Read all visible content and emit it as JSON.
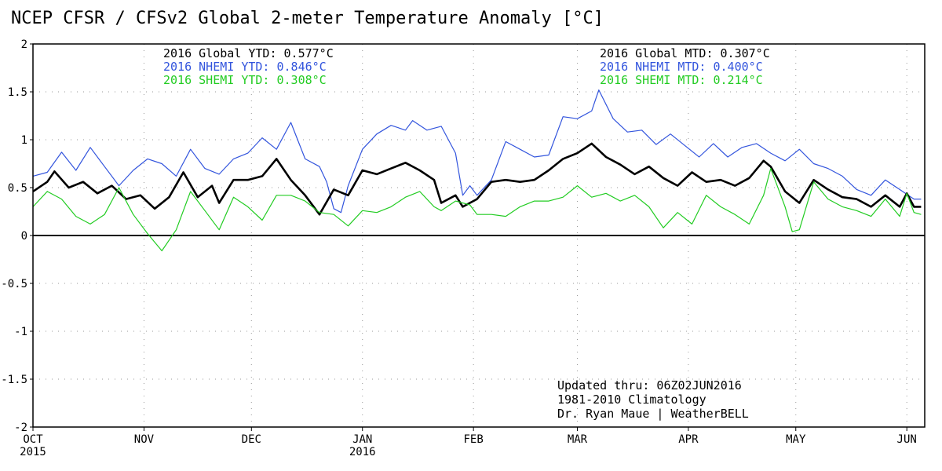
{
  "chart_data": {
    "type": "line",
    "title": "NCEP CFSR / CFSv2 Global 2-meter Temperature Anomaly [°C]",
    "xlabel": "",
    "ylabel": "",
    "ylim": [
      -2,
      2
    ],
    "xlim": [
      0,
      249
    ],
    "yticks": [
      {
        "value": 2,
        "label": "2"
      },
      {
        "value": 1.5,
        "label": "1.5"
      },
      {
        "value": 1,
        "label": "1"
      },
      {
        "value": 0.5,
        "label": "0.5"
      },
      {
        "value": 0,
        "label": "0"
      },
      {
        "value": -0.5,
        "label": "-0.5"
      },
      {
        "value": -1,
        "label": "-1"
      },
      {
        "value": -1.5,
        "label": "-1.5"
      },
      {
        "value": -2,
        "label": "-2"
      }
    ],
    "xticks": [
      {
        "day": 0,
        "label": "OCT",
        "sublabel": "2015"
      },
      {
        "day": 31,
        "label": "NOV",
        "sublabel": ""
      },
      {
        "day": 61,
        "label": "DEC",
        "sublabel": ""
      },
      {
        "day": 92,
        "label": "JAN",
        "sublabel": "2016"
      },
      {
        "day": 123,
        "label": "FEB",
        "sublabel": ""
      },
      {
        "day": 152,
        "label": "MAR",
        "sublabel": ""
      },
      {
        "day": 183,
        "label": "APR",
        "sublabel": ""
      },
      {
        "day": 213,
        "label": "MAY",
        "sublabel": ""
      },
      {
        "day": 244,
        "label": "JUN",
        "sublabel": ""
      }
    ],
    "series": [
      {
        "name": "NHEMI",
        "color": "#3355dd",
        "points": [
          [
            0,
            0.62
          ],
          [
            4,
            0.66
          ],
          [
            8,
            0.87
          ],
          [
            12,
            0.68
          ],
          [
            16,
            0.92
          ],
          [
            20,
            0.72
          ],
          [
            24,
            0.52
          ],
          [
            28,
            0.68
          ],
          [
            32,
            0.8
          ],
          [
            36,
            0.75
          ],
          [
            40,
            0.62
          ],
          [
            44,
            0.9
          ],
          [
            48,
            0.7
          ],
          [
            52,
            0.64
          ],
          [
            56,
            0.8
          ],
          [
            60,
            0.86
          ],
          [
            64,
            1.02
          ],
          [
            68,
            0.9
          ],
          [
            72,
            1.18
          ],
          [
            76,
            0.8
          ],
          [
            80,
            0.72
          ],
          [
            82,
            0.56
          ],
          [
            84,
            0.28
          ],
          [
            86,
            0.24
          ],
          [
            88,
            0.52
          ],
          [
            92,
            0.9
          ],
          [
            96,
            1.06
          ],
          [
            100,
            1.15
          ],
          [
            104,
            1.1
          ],
          [
            106,
            1.2
          ],
          [
            110,
            1.1
          ],
          [
            114,
            1.14
          ],
          [
            118,
            0.86
          ],
          [
            120,
            0.42
          ],
          [
            122,
            0.52
          ],
          [
            124,
            0.42
          ],
          [
            128,
            0.58
          ],
          [
            132,
            0.98
          ],
          [
            136,
            0.9
          ],
          [
            140,
            0.82
          ],
          [
            144,
            0.84
          ],
          [
            148,
            1.24
          ],
          [
            152,
            1.22
          ],
          [
            156,
            1.3
          ],
          [
            158,
            1.52
          ],
          [
            162,
            1.22
          ],
          [
            166,
            1.08
          ],
          [
            170,
            1.1
          ],
          [
            174,
            0.95
          ],
          [
            178,
            1.06
          ],
          [
            182,
            0.94
          ],
          [
            186,
            0.82
          ],
          [
            190,
            0.96
          ],
          [
            194,
            0.82
          ],
          [
            198,
            0.92
          ],
          [
            202,
            0.96
          ],
          [
            206,
            0.86
          ],
          [
            210,
            0.78
          ],
          [
            214,
            0.9
          ],
          [
            218,
            0.75
          ],
          [
            222,
            0.7
          ],
          [
            226,
            0.62
          ],
          [
            230,
            0.48
          ],
          [
            234,
            0.42
          ],
          [
            238,
            0.58
          ],
          [
            242,
            0.48
          ],
          [
            246,
            0.38
          ],
          [
            248,
            0.38
          ]
        ]
      },
      {
        "name": "Global",
        "color": "#000000",
        "points": [
          [
            0,
            0.46
          ],
          [
            4,
            0.56
          ],
          [
            6,
            0.67
          ],
          [
            10,
            0.5
          ],
          [
            14,
            0.56
          ],
          [
            18,
            0.44
          ],
          [
            22,
            0.52
          ],
          [
            26,
            0.38
          ],
          [
            30,
            0.42
          ],
          [
            34,
            0.28
          ],
          [
            38,
            0.4
          ],
          [
            42,
            0.66
          ],
          [
            46,
            0.4
          ],
          [
            50,
            0.52
          ],
          [
            52,
            0.34
          ],
          [
            56,
            0.58
          ],
          [
            60,
            0.58
          ],
          [
            64,
            0.62
          ],
          [
            68,
            0.8
          ],
          [
            72,
            0.58
          ],
          [
            76,
            0.42
          ],
          [
            80,
            0.22
          ],
          [
            84,
            0.48
          ],
          [
            88,
            0.42
          ],
          [
            92,
            0.68
          ],
          [
            96,
            0.64
          ],
          [
            100,
            0.7
          ],
          [
            104,
            0.76
          ],
          [
            108,
            0.68
          ],
          [
            112,
            0.58
          ],
          [
            114,
            0.34
          ],
          [
            118,
            0.42
          ],
          [
            120,
            0.3
          ],
          [
            124,
            0.38
          ],
          [
            128,
            0.56
          ],
          [
            132,
            0.58
          ],
          [
            136,
            0.56
          ],
          [
            140,
            0.58
          ],
          [
            144,
            0.68
          ],
          [
            148,
            0.8
          ],
          [
            152,
            0.86
          ],
          [
            156,
            0.96
          ],
          [
            160,
            0.82
          ],
          [
            164,
            0.74
          ],
          [
            168,
            0.64
          ],
          [
            172,
            0.72
          ],
          [
            176,
            0.6
          ],
          [
            180,
            0.52
          ],
          [
            184,
            0.66
          ],
          [
            188,
            0.56
          ],
          [
            192,
            0.58
          ],
          [
            196,
            0.52
          ],
          [
            200,
            0.6
          ],
          [
            204,
            0.78
          ],
          [
            206,
            0.72
          ],
          [
            210,
            0.46
          ],
          [
            214,
            0.34
          ],
          [
            218,
            0.58
          ],
          [
            222,
            0.48
          ],
          [
            226,
            0.4
          ],
          [
            230,
            0.38
          ],
          [
            234,
            0.3
          ],
          [
            238,
            0.42
          ],
          [
            242,
            0.3
          ],
          [
            244,
            0.44
          ],
          [
            246,
            0.3
          ],
          [
            248,
            0.3
          ]
        ]
      },
      {
        "name": "SHEMI",
        "color": "#22cc22",
        "points": [
          [
            0,
            0.3
          ],
          [
            4,
            0.46
          ],
          [
            8,
            0.38
          ],
          [
            12,
            0.2
          ],
          [
            16,
            0.12
          ],
          [
            20,
            0.22
          ],
          [
            24,
            0.5
          ],
          [
            28,
            0.22
          ],
          [
            32,
            0.02
          ],
          [
            36,
            -0.16
          ],
          [
            40,
            0.06
          ],
          [
            44,
            0.46
          ],
          [
            48,
            0.26
          ],
          [
            52,
            0.06
          ],
          [
            56,
            0.4
          ],
          [
            60,
            0.3
          ],
          [
            64,
            0.16
          ],
          [
            68,
            0.42
          ],
          [
            72,
            0.42
          ],
          [
            76,
            0.36
          ],
          [
            80,
            0.24
          ],
          [
            84,
            0.22
          ],
          [
            88,
            0.1
          ],
          [
            92,
            0.26
          ],
          [
            96,
            0.24
          ],
          [
            100,
            0.3
          ],
          [
            104,
            0.4
          ],
          [
            108,
            0.46
          ],
          [
            112,
            0.3
          ],
          [
            114,
            0.26
          ],
          [
            118,
            0.36
          ],
          [
            122,
            0.32
          ],
          [
            124,
            0.22
          ],
          [
            128,
            0.22
          ],
          [
            132,
            0.2
          ],
          [
            136,
            0.3
          ],
          [
            140,
            0.36
          ],
          [
            144,
            0.36
          ],
          [
            148,
            0.4
          ],
          [
            152,
            0.52
          ],
          [
            156,
            0.4
          ],
          [
            160,
            0.44
          ],
          [
            164,
            0.36
          ],
          [
            168,
            0.42
          ],
          [
            172,
            0.3
          ],
          [
            176,
            0.08
          ],
          [
            180,
            0.24
          ],
          [
            184,
            0.12
          ],
          [
            188,
            0.42
          ],
          [
            192,
            0.3
          ],
          [
            196,
            0.22
          ],
          [
            200,
            0.12
          ],
          [
            204,
            0.42
          ],
          [
            206,
            0.7
          ],
          [
            210,
            0.3
          ],
          [
            212,
            0.04
          ],
          [
            214,
            0.06
          ],
          [
            218,
            0.56
          ],
          [
            222,
            0.38
          ],
          [
            226,
            0.3
          ],
          [
            230,
            0.26
          ],
          [
            234,
            0.2
          ],
          [
            238,
            0.38
          ],
          [
            242,
            0.2
          ],
          [
            244,
            0.44
          ],
          [
            246,
            0.24
          ],
          [
            248,
            0.22
          ]
        ]
      }
    ],
    "stats_left": [
      {
        "text": "2016 Global YTD: 0.577°C",
        "color": "#000000"
      },
      {
        "text": "2016 NHEMI YTD: 0.846°C",
        "color": "#3355dd"
      },
      {
        "text": "2016 SHEMI YTD: 0.308°C",
        "color": "#22cc22"
      }
    ],
    "stats_right": [
      {
        "text": "2016 Global MTD: 0.307°C",
        "color": "#000000"
      },
      {
        "text": "2016 NHEMI MTD: 0.400°C",
        "color": "#3355dd"
      },
      {
        "text": "2016 SHEMI MTD: 0.214°C",
        "color": "#22cc22"
      }
    ],
    "annotations": [
      "Updated thru: 06Z02JUN2016",
      "1981-2010 Climatology",
      "Dr. Ryan Maue | WeatherBELL"
    ]
  }
}
